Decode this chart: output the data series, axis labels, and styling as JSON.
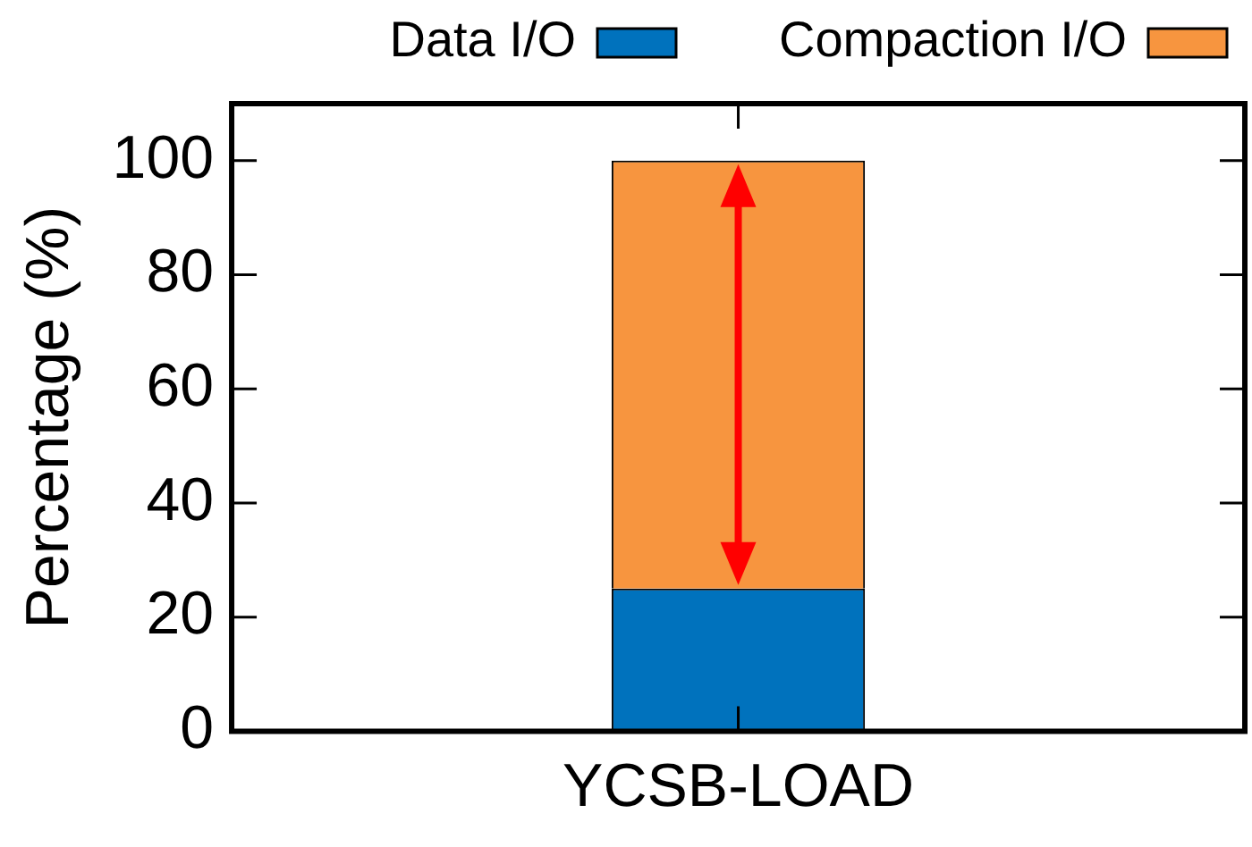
{
  "chart_data": {
    "type": "bar",
    "stacked": true,
    "ylabel": "Percentage (%)",
    "categories": [
      "YCSB-LOAD"
    ],
    "series": [
      {
        "name": "Data I/O",
        "color": "#0072bd",
        "values": [
          25
        ]
      },
      {
        "name": "Compaction I/O",
        "color": "#f7953f",
        "values": [
          75
        ]
      }
    ],
    "ylim": [
      0,
      110
    ],
    "yticks": [
      0,
      20,
      40,
      60,
      80,
      100
    ],
    "grid": false,
    "legend": "top"
  }
}
